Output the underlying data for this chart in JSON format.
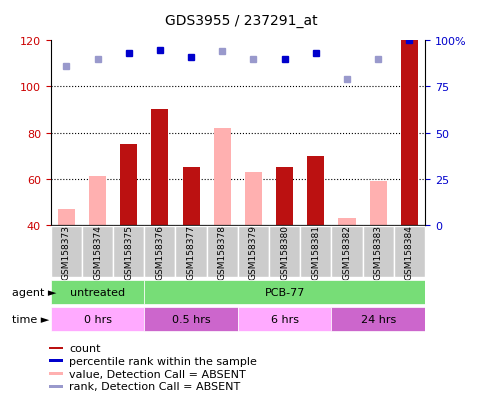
{
  "title": "GDS3955 / 237291_at",
  "samples": [
    "GSM158373",
    "GSM158374",
    "GSM158375",
    "GSM158376",
    "GSM158377",
    "GSM158378",
    "GSM158379",
    "GSM158380",
    "GSM158381",
    "GSM158382",
    "GSM158383",
    "GSM158384"
  ],
  "count_values": [
    null,
    null,
    75,
    90,
    65,
    null,
    null,
    65,
    70,
    null,
    null,
    120
  ],
  "count_absent_values": [
    47,
    61,
    null,
    null,
    null,
    82,
    63,
    null,
    null,
    43,
    59,
    null
  ],
  "rank_values": [
    null,
    null,
    93,
    95,
    91,
    null,
    null,
    90,
    93,
    null,
    null,
    100
  ],
  "rank_absent_values": [
    86,
    90,
    null,
    null,
    null,
    94,
    90,
    null,
    null,
    79,
    90,
    null
  ],
  "ylim_left": [
    40,
    120
  ],
  "ylim_right": [
    0,
    100
  ],
  "yticks_left": [
    40,
    60,
    80,
    100,
    120
  ],
  "yticks_right": [
    0,
    25,
    50,
    75,
    100
  ],
  "ytick_labels_right": [
    "0",
    "25",
    "50",
    "75",
    "100%"
  ],
  "bar_color_dark": "#bb1111",
  "bar_color_light": "#ffb0b0",
  "dot_color_dark": "#0000cc",
  "dot_color_light": "#9999cc",
  "agent_green": "#77dd77",
  "time_light": "#ffaaff",
  "time_dark": "#cc66cc",
  "background_color": "#ffffff",
  "plot_bg_color": "#ffffff",
  "sample_box_color": "#cccccc"
}
